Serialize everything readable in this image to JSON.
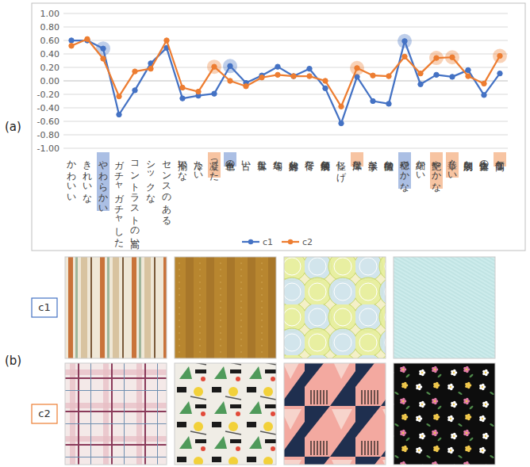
{
  "chart_data": {
    "type": "line",
    "categories": [
      "かわいい",
      "きれいな",
      "やわらかい",
      "ガチャガチャした",
      "コントラストの高い",
      "シックな",
      "センスのある",
      "不揃いな",
      "冷たい",
      "凝った",
      "単色の",
      "古い",
      "古風な",
      "均等な",
      "対称的な",
      "平行な",
      "幾何学的な",
      "怪しげ",
      "洋風な",
      "派手な",
      "特徴的な",
      "穏やかな",
      "細かい",
      "艶やかな",
      "華々しい",
      "規則的な",
      "集合体の",
      "高価な"
    ],
    "series": [
      {
        "name": "c1",
        "color": "#4472c4",
        "marker": "circle",
        "values": [
          0.6,
          0.6,
          0.48,
          -0.5,
          -0.14,
          0.26,
          0.49,
          -0.26,
          -0.22,
          -0.19,
          0.22,
          -0.03,
          0.08,
          0.21,
          0.07,
          0.18,
          -0.11,
          -0.63,
          0.06,
          -0.3,
          -0.34,
          0.59,
          -0.05,
          0.09,
          0.06,
          0.16,
          -0.21,
          0.11
        ],
        "highlighted": [
          "やわらかい",
          "単色の",
          "穏やかな"
        ]
      },
      {
        "name": "c2",
        "color": "#ed7d31",
        "marker": "circle",
        "values": [
          0.52,
          0.62,
          0.33,
          -0.23,
          0.14,
          0.18,
          0.6,
          -0.1,
          -0.16,
          0.21,
          0.0,
          -0.08,
          0.05,
          0.09,
          0.07,
          0.07,
          0.0,
          -0.38,
          0.19,
          0.08,
          0.07,
          0.36,
          0.11,
          0.34,
          0.35,
          0.07,
          -0.04,
          0.37
        ],
        "highlighted": [
          "凝った",
          "洋風な",
          "艶やかな",
          "華々しい",
          "高価な"
        ]
      }
    ],
    "ylim": [
      -1,
      1
    ],
    "yticks": [
      {
        "value": -1,
        "label": "-1.00"
      },
      {
        "value": -0.8,
        "label": "-0.80"
      },
      {
        "value": -0.6,
        "label": "-0.60"
      },
      {
        "value": -0.4,
        "label": "-0.40"
      },
      {
        "value": -0.2,
        "label": "-0.20"
      },
      {
        "value": 0,
        "label": "0.00"
      },
      {
        "value": 0.2,
        "label": "0.20"
      },
      {
        "value": 0.4,
        "label": "0.40"
      },
      {
        "value": 0.6,
        "label": "0.60"
      },
      {
        "value": 0.8,
        "label": "0.80"
      },
      {
        "value": 1,
        "label": "1.00"
      }
    ],
    "grid": true,
    "legend": "bottom"
  },
  "figure": {
    "panel_labels": [
      "(a)",
      "(b)"
    ],
    "swatch_rows": [
      "c1",
      "c2"
    ]
  }
}
